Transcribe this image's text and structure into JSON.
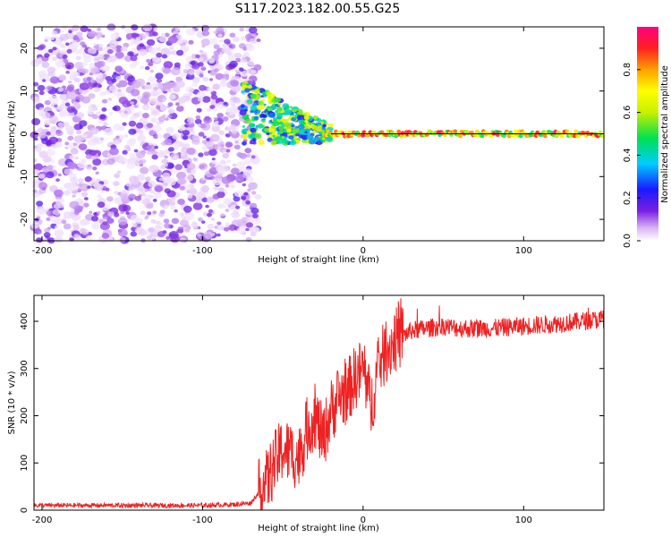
{
  "title": "S117.2023.182.00.55.G25",
  "chart_data": [
    {
      "type": "heatmap",
      "xlabel": "Height of straight line (km)",
      "ylabel": "Frequency (Hz)",
      "xlim": [
        -205,
        150
      ],
      "ylim": [
        -25,
        25
      ],
      "xticks": [
        -200,
        -100,
        0,
        100
      ],
      "xtick_labels": [
        "-200",
        "-100",
        "0",
        "100"
      ],
      "yticks": [
        -20,
        -10,
        0,
        10,
        20
      ],
      "ytick_labels": [
        "-20",
        "-10",
        "0",
        "10",
        "20"
      ],
      "colorbar": {
        "label": "Normalized spectral amplitude",
        "range": [
          0,
          1
        ],
        "ticks": [
          0.0,
          0.2,
          0.4,
          0.6,
          0.8
        ],
        "tick_labels": [
          "0.0",
          "0.2",
          "0.4",
          "0.6",
          "0.8"
        ]
      },
      "noise_region_x": [
        -205,
        -65
      ],
      "signal_line_frequency": 0,
      "grid": false
    },
    {
      "type": "line",
      "xlabel": "Height of straight line (km)",
      "ylabel": "SNR (10 * v/v)",
      "xlim": [
        -205,
        150
      ],
      "ylim": [
        0,
        455
      ],
      "xticks": [
        -200,
        -100,
        0,
        100
      ],
      "xtick_labels": [
        "-200",
        "-100",
        "0",
        "100"
      ],
      "yticks": [
        0,
        100,
        200,
        300,
        400
      ],
      "ytick_labels": [
        "0",
        "100",
        "200",
        "300",
        "400"
      ],
      "series": [
        {
          "color": "#ee2222",
          "x": [
            -205,
            -150,
            -100,
            -80,
            -70,
            -60,
            -55,
            -50,
            -45,
            -40,
            -35,
            -30,
            -25,
            -20,
            -15,
            -10,
            -5,
            0,
            5,
            10,
            15,
            20,
            25,
            30,
            40,
            50,
            60,
            80,
            100,
            120,
            150
          ],
          "y": [
            10,
            10,
            10,
            12,
            15,
            60,
            100,
            130,
            120,
            110,
            170,
            200,
            150,
            210,
            240,
            250,
            280,
            300,
            220,
            310,
            340,
            360,
            370,
            380,
            385,
            390,
            385,
            385,
            390,
            395,
            405
          ]
        }
      ],
      "grid": false
    }
  ]
}
